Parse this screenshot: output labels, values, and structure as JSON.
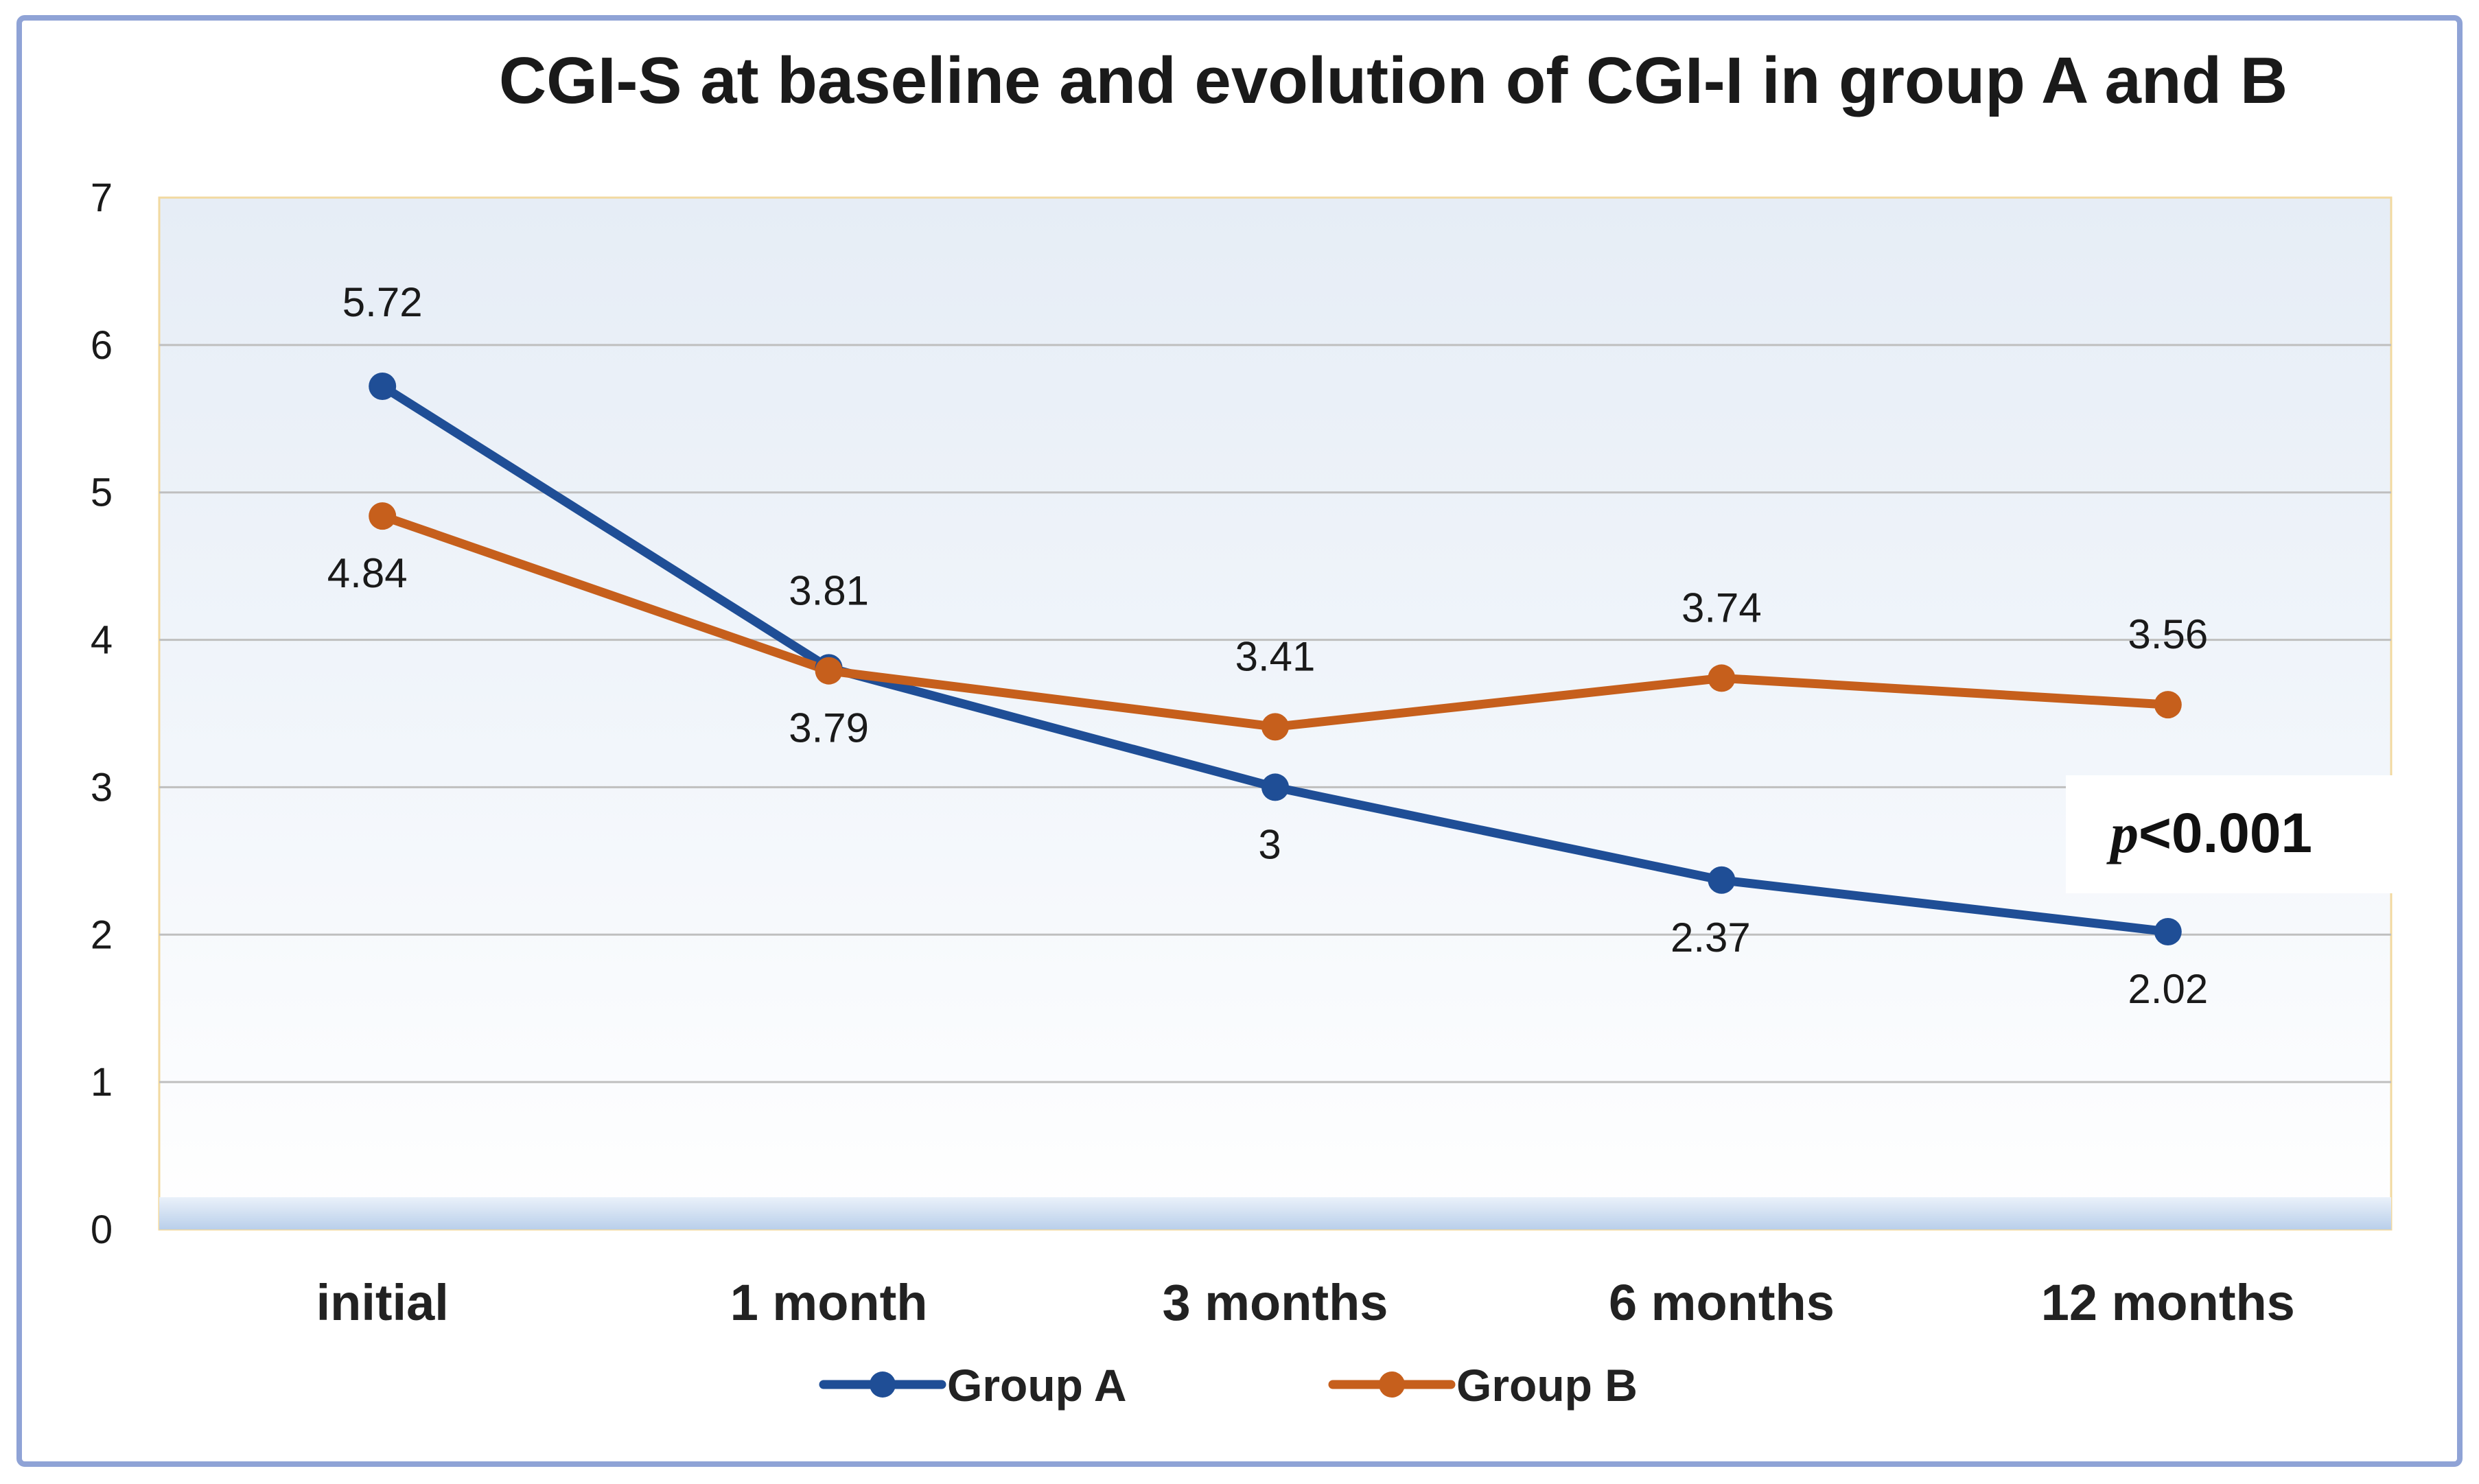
{
  "chart_data": {
    "type": "line",
    "title": "CGI-S at baseline and evolution of CGI-I in group A and B",
    "xlabel": "",
    "ylabel": "",
    "categories": [
      "initial",
      "1 month",
      "3 months",
      "6 months",
      "12 months"
    ],
    "ylim": [
      0,
      7
    ],
    "yticks": [
      "0",
      "1",
      "2",
      "3",
      "4",
      "5",
      "6",
      "7"
    ],
    "grid": true,
    "legend_position": "bottom",
    "series": [
      {
        "name": "Group A",
        "color": "#1F4E96",
        "values": [
          5.72,
          3.81,
          3,
          2.37,
          2.02
        ],
        "labels": [
          "5.72",
          "3.81",
          "3",
          "2.37",
          "2.02"
        ]
      },
      {
        "name": "Group B",
        "color": "#C65F1C",
        "values": [
          4.84,
          3.79,
          3.41,
          3.74,
          3.56
        ],
        "labels": [
          "4.84",
          "3.79",
          "3.41",
          "3.74",
          "3.56"
        ]
      }
    ],
    "annotation": {
      "italic_part": "p",
      "rest": "<0.001"
    }
  },
  "colors": {
    "frame_border": "#8FA3D6",
    "grid": "#BFBFBF",
    "plot_background_top": "#E8EFF7",
    "plot_border": "#F2D9A0"
  }
}
